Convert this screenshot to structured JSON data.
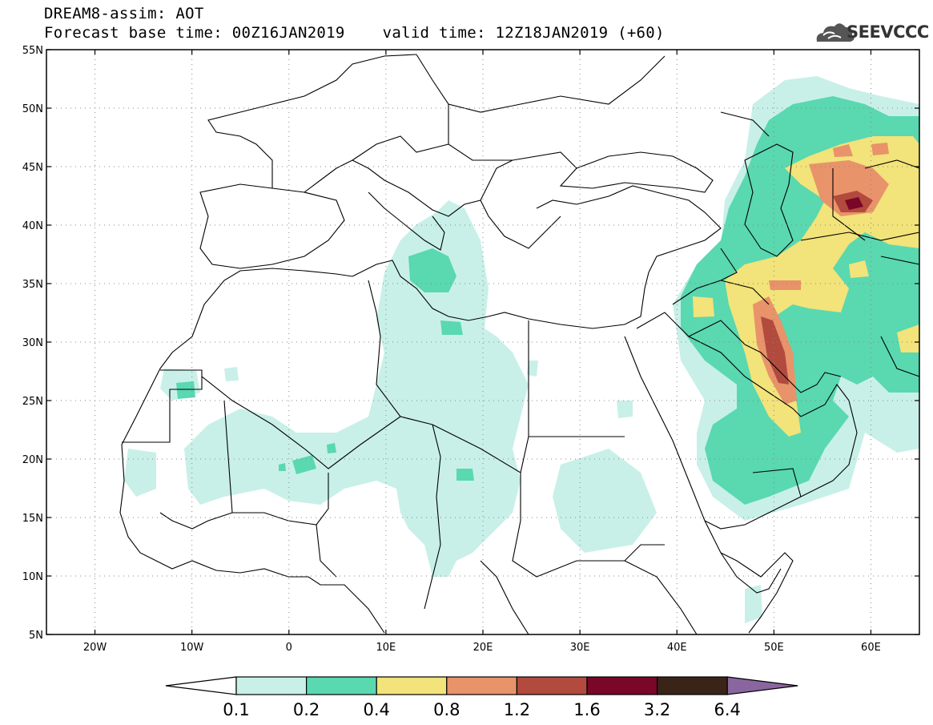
{
  "header": {
    "title": "DREAM8-assim: AOT",
    "subtitle": "Forecast base time: 00Z16JAN2019    valid time: 12Z18JAN2019 (+60)"
  },
  "logo": {
    "text": "SEEVCCC",
    "icon": "cloud-logo-icon"
  },
  "map": {
    "lon_range": [
      -25,
      65
    ],
    "lat_range": [
      5,
      55
    ],
    "grid": "dotted",
    "lat_ticks": [
      "55N",
      "50N",
      "45N",
      "40N",
      "35N",
      "30N",
      "25N",
      "20N",
      "15N",
      "10N",
      "5N"
    ],
    "lon_ticks": [
      "20W",
      "10W",
      "0",
      "10E",
      "20E",
      "30E",
      "40E",
      "50E",
      "60E"
    ]
  },
  "colorbar": {
    "levels": [
      "0.1",
      "0.2",
      "0.4",
      "0.8",
      "1.2",
      "1.6",
      "3.2",
      "6.4"
    ],
    "colors": [
      "#ffffff",
      "#c8f0e8",
      "#5ad8b0",
      "#f2e37a",
      "#e8936a",
      "#b24a3e",
      "#7a0628",
      "#3a2418",
      "#8a66a0"
    ]
  }
}
